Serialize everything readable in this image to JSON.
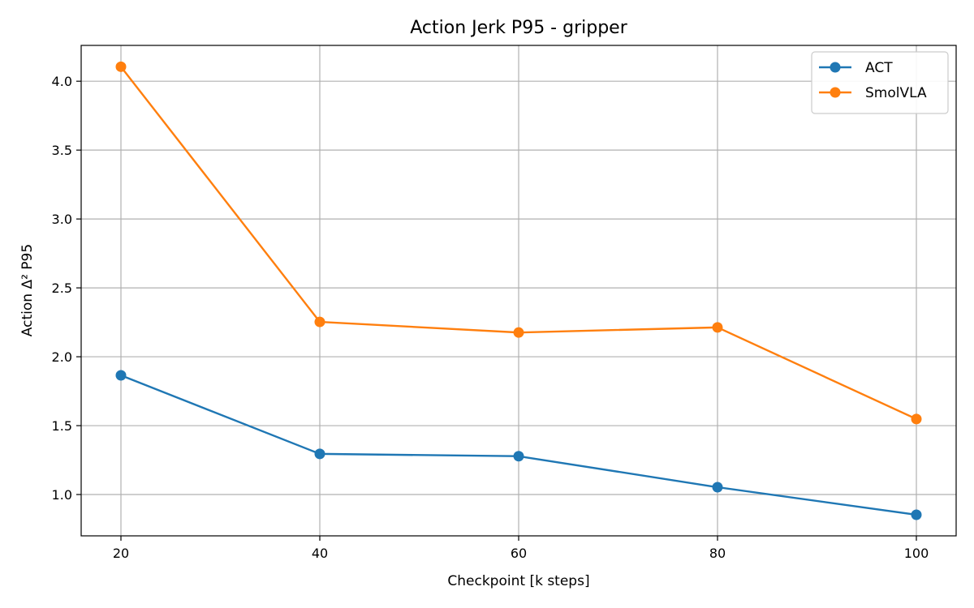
{
  "chart_data": {
    "type": "line",
    "title": "Action Jerk P95 - gripper",
    "xlabel": "Checkpoint [k steps]",
    "ylabel": "Action Δ² P95",
    "x": [
      20,
      40,
      60,
      80,
      100
    ],
    "xlim": [
      16,
      104
    ],
    "ylim": [
      0.7,
      4.26
    ],
    "xticks": [
      20,
      40,
      60,
      80,
      100
    ],
    "yticks": [
      1.0,
      1.5,
      2.0,
      2.5,
      3.0,
      3.5,
      4.0
    ],
    "ytick_labels": [
      "1.0",
      "1.5",
      "2.0",
      "2.5",
      "3.0",
      "3.5",
      "4.0"
    ],
    "grid": true,
    "legend_position": "top-right",
    "series": [
      {
        "name": "ACT",
        "color": "#1f77b4",
        "values": [
          1.865,
          1.295,
          1.278,
          1.053,
          0.853
        ]
      },
      {
        "name": "SmolVLA",
        "color": "#ff7f0e",
        "values": [
          4.105,
          2.253,
          2.176,
          2.213,
          1.548
        ]
      }
    ]
  }
}
